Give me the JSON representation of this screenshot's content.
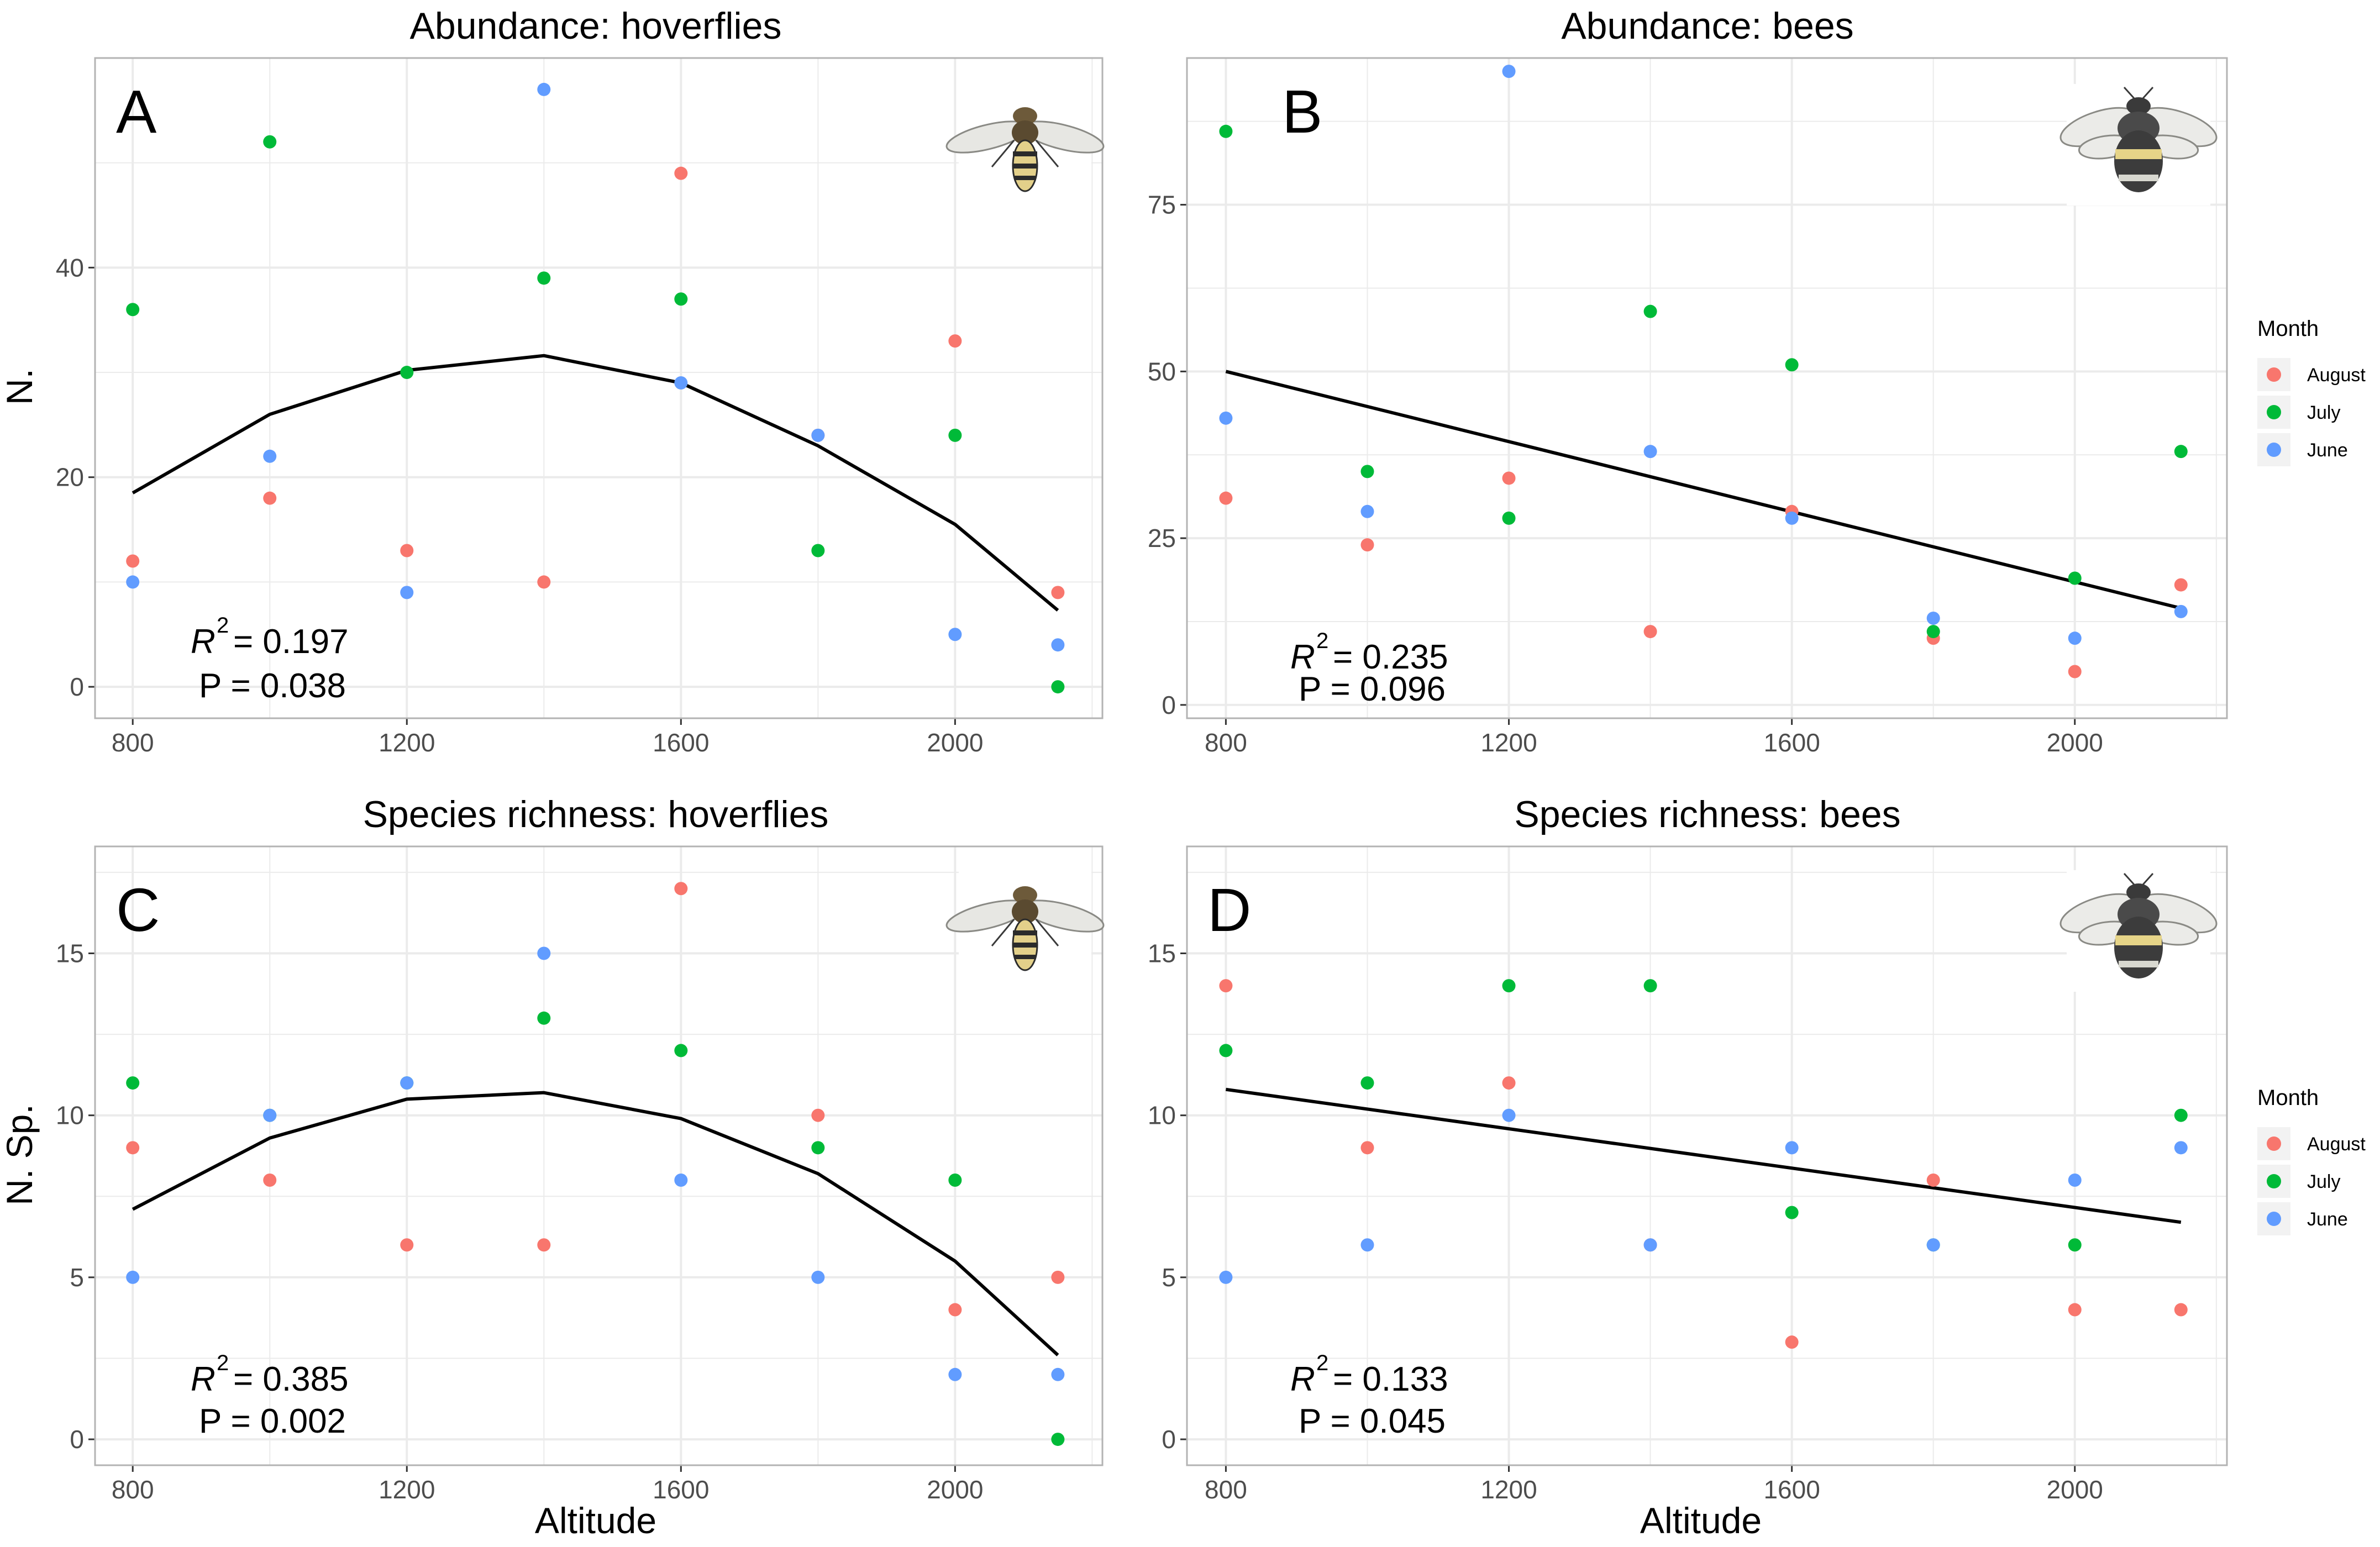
{
  "colors": {
    "August": "#F8766D",
    "July": "#00BA38",
    "June": "#619CFF",
    "grid": "#ebebeb",
    "panel_border": "#b3b3b3",
    "fit_line": "#000000"
  },
  "legend": {
    "title": "Month",
    "entries": [
      "August",
      "July",
      "June"
    ]
  },
  "icons": {
    "hoverfly": "hoverfly-illustration",
    "bee": "bumblebee-illustration"
  },
  "chart_data": [
    {
      "type": "scatter",
      "panel_letter": "A",
      "title": "Abundance: hoverflies",
      "xlabel": "",
      "ylabel": "N.",
      "xlim": [
        745,
        2215
      ],
      "ylim": [
        -3,
        60
      ],
      "x_ticks": [
        800,
        1200,
        1600,
        2000
      ],
      "y_ticks": [
        0,
        20,
        40
      ],
      "grid": true,
      "icon": "hoverfly",
      "stats": {
        "r2_label": "R",
        "r2_sup": "2",
        "r2_value": " = 0.197",
        "p_text": "P = 0.038"
      },
      "series": [
        {
          "name": "August",
          "points": [
            [
              800,
              12
            ],
            [
              1000,
              18
            ],
            [
              1200,
              13
            ],
            [
              1400,
              10
            ],
            [
              1600,
              49
            ],
            [
              1800,
              24
            ],
            [
              2000,
              33
            ],
            [
              2150,
              9
            ]
          ]
        },
        {
          "name": "July",
          "points": [
            [
              800,
              36
            ],
            [
              1000,
              52
            ],
            [
              1200,
              30
            ],
            [
              1400,
              39
            ],
            [
              1600,
              37
            ],
            [
              1800,
              13
            ],
            [
              2000,
              24
            ],
            [
              2150,
              0
            ]
          ]
        },
        {
          "name": "June",
          "points": [
            [
              800,
              10
            ],
            [
              1000,
              22
            ],
            [
              1200,
              9
            ],
            [
              1400,
              57
            ],
            [
              1600,
              29
            ],
            [
              1800,
              24
            ],
            [
              2000,
              5
            ],
            [
              2150,
              4
            ]
          ]
        }
      ],
      "fit": {
        "model": "quadratic",
        "points": [
          [
            800,
            18.5
          ],
          [
            1000,
            26
          ],
          [
            1200,
            30.2
          ],
          [
            1400,
            31.6
          ],
          [
            1600,
            29
          ],
          [
            1800,
            23
          ],
          [
            2000,
            15.5
          ],
          [
            2150,
            7.3
          ]
        ]
      }
    },
    {
      "type": "scatter",
      "panel_letter": "B",
      "title": "Abundance: bees",
      "xlabel": "",
      "ylabel": "",
      "xlim": [
        745,
        2215
      ],
      "ylim": [
        -2,
        97
      ],
      "x_ticks": [
        800,
        1200,
        1600,
        2000
      ],
      "y_ticks": [
        0,
        25,
        50,
        75
      ],
      "grid": true,
      "icon": "bee",
      "stats": {
        "r2_label": "R",
        "r2_sup": "2",
        "r2_value": " = 0.235",
        "p_text": "P = 0.096"
      },
      "series": [
        {
          "name": "August",
          "points": [
            [
              800,
              31
            ],
            [
              1000,
              24
            ],
            [
              1200,
              34
            ],
            [
              1400,
              11
            ],
            [
              1600,
              29
            ],
            [
              1800,
              10
            ],
            [
              2000,
              5
            ],
            [
              2150,
              18
            ]
          ]
        },
        {
          "name": "July",
          "points": [
            [
              800,
              86
            ],
            [
              1000,
              35
            ],
            [
              1200,
              28
            ],
            [
              1400,
              59
            ],
            [
              1600,
              51
            ],
            [
              1800,
              11
            ],
            [
              2000,
              19
            ],
            [
              2150,
              38
            ]
          ]
        },
        {
          "name": "June",
          "points": [
            [
              800,
              43
            ],
            [
              1000,
              29
            ],
            [
              1200,
              95
            ],
            [
              1400,
              38
            ],
            [
              1600,
              28
            ],
            [
              1800,
              13
            ],
            [
              2000,
              10
            ],
            [
              2150,
              14
            ]
          ]
        }
      ],
      "fit": {
        "model": "linear",
        "points": [
          [
            800,
            50
          ],
          [
            2150,
            14.5
          ]
        ]
      }
    },
    {
      "type": "scatter",
      "panel_letter": "C",
      "title": "Species richness: hoverflies",
      "xlabel": "Altitude",
      "ylabel": "N. Sp.",
      "xlim": [
        745,
        2215
      ],
      "ylim": [
        -0.8,
        18.3
      ],
      "x_ticks": [
        800,
        1200,
        1600,
        2000
      ],
      "y_ticks": [
        0,
        5,
        10,
        15
      ],
      "grid": true,
      "icon": "hoverfly",
      "stats": {
        "r2_label": "R",
        "r2_sup": "2",
        "r2_value": " = 0.385",
        "p_text": "P = 0.002"
      },
      "series": [
        {
          "name": "August",
          "points": [
            [
              800,
              9
            ],
            [
              1000,
              8
            ],
            [
              1200,
              6
            ],
            [
              1400,
              6
            ],
            [
              1600,
              17
            ],
            [
              1800,
              10
            ],
            [
              2000,
              4
            ],
            [
              2150,
              5
            ]
          ]
        },
        {
          "name": "July",
          "points": [
            [
              800,
              11
            ],
            [
              1000,
              10
            ],
            [
              1200,
              11
            ],
            [
              1400,
              13
            ],
            [
              1600,
              12
            ],
            [
              1800,
              9
            ],
            [
              2000,
              8
            ],
            [
              2150,
              0
            ]
          ]
        },
        {
          "name": "June",
          "points": [
            [
              800,
              5
            ],
            [
              1000,
              10
            ],
            [
              1200,
              11
            ],
            [
              1400,
              15
            ],
            [
              1600,
              8
            ],
            [
              1800,
              5
            ],
            [
              2000,
              2
            ],
            [
              2150,
              2
            ]
          ]
        }
      ],
      "fit": {
        "model": "quadratic",
        "points": [
          [
            800,
            7.1
          ],
          [
            1000,
            9.3
          ],
          [
            1200,
            10.5
          ],
          [
            1400,
            10.7
          ],
          [
            1600,
            9.9
          ],
          [
            1800,
            8.2
          ],
          [
            2000,
            5.5
          ],
          [
            2150,
            2.6
          ]
        ]
      }
    },
    {
      "type": "scatter",
      "panel_letter": "D",
      "title": "Species richness: bees",
      "xlabel": "Altitude",
      "ylabel": "",
      "xlim": [
        745,
        2215
      ],
      "ylim": [
        -0.8,
        18.3
      ],
      "x_ticks": [
        800,
        1200,
        1600,
        2000
      ],
      "y_ticks": [
        0,
        5,
        10,
        15
      ],
      "grid": true,
      "icon": "bee",
      "stats": {
        "r2_label": "R",
        "r2_sup": "2",
        "r2_value": " = 0.133",
        "p_text": "P = 0.045"
      },
      "series": [
        {
          "name": "August",
          "points": [
            [
              800,
              14
            ],
            [
              1000,
              9
            ],
            [
              1200,
              11
            ],
            [
              1400,
              6
            ],
            [
              1600,
              3
            ],
            [
              1800,
              8
            ],
            [
              2000,
              4
            ],
            [
              2150,
              4
            ]
          ]
        },
        {
          "name": "July",
          "points": [
            [
              800,
              12
            ],
            [
              1000,
              11
            ],
            [
              1200,
              14
            ],
            [
              1400,
              14
            ],
            [
              1600,
              7
            ],
            [
              1800,
              6
            ],
            [
              2000,
              6
            ],
            [
              2150,
              10
            ]
          ]
        },
        {
          "name": "June",
          "points": [
            [
              800,
              5
            ],
            [
              1000,
              6
            ],
            [
              1200,
              10
            ],
            [
              1400,
              6
            ],
            [
              1600,
              9
            ],
            [
              1800,
              6
            ],
            [
              2000,
              8
            ],
            [
              2150,
              9
            ]
          ]
        }
      ],
      "fit": {
        "model": "linear",
        "points": [
          [
            800,
            10.8
          ],
          [
            2150,
            6.7
          ]
        ]
      }
    }
  ]
}
